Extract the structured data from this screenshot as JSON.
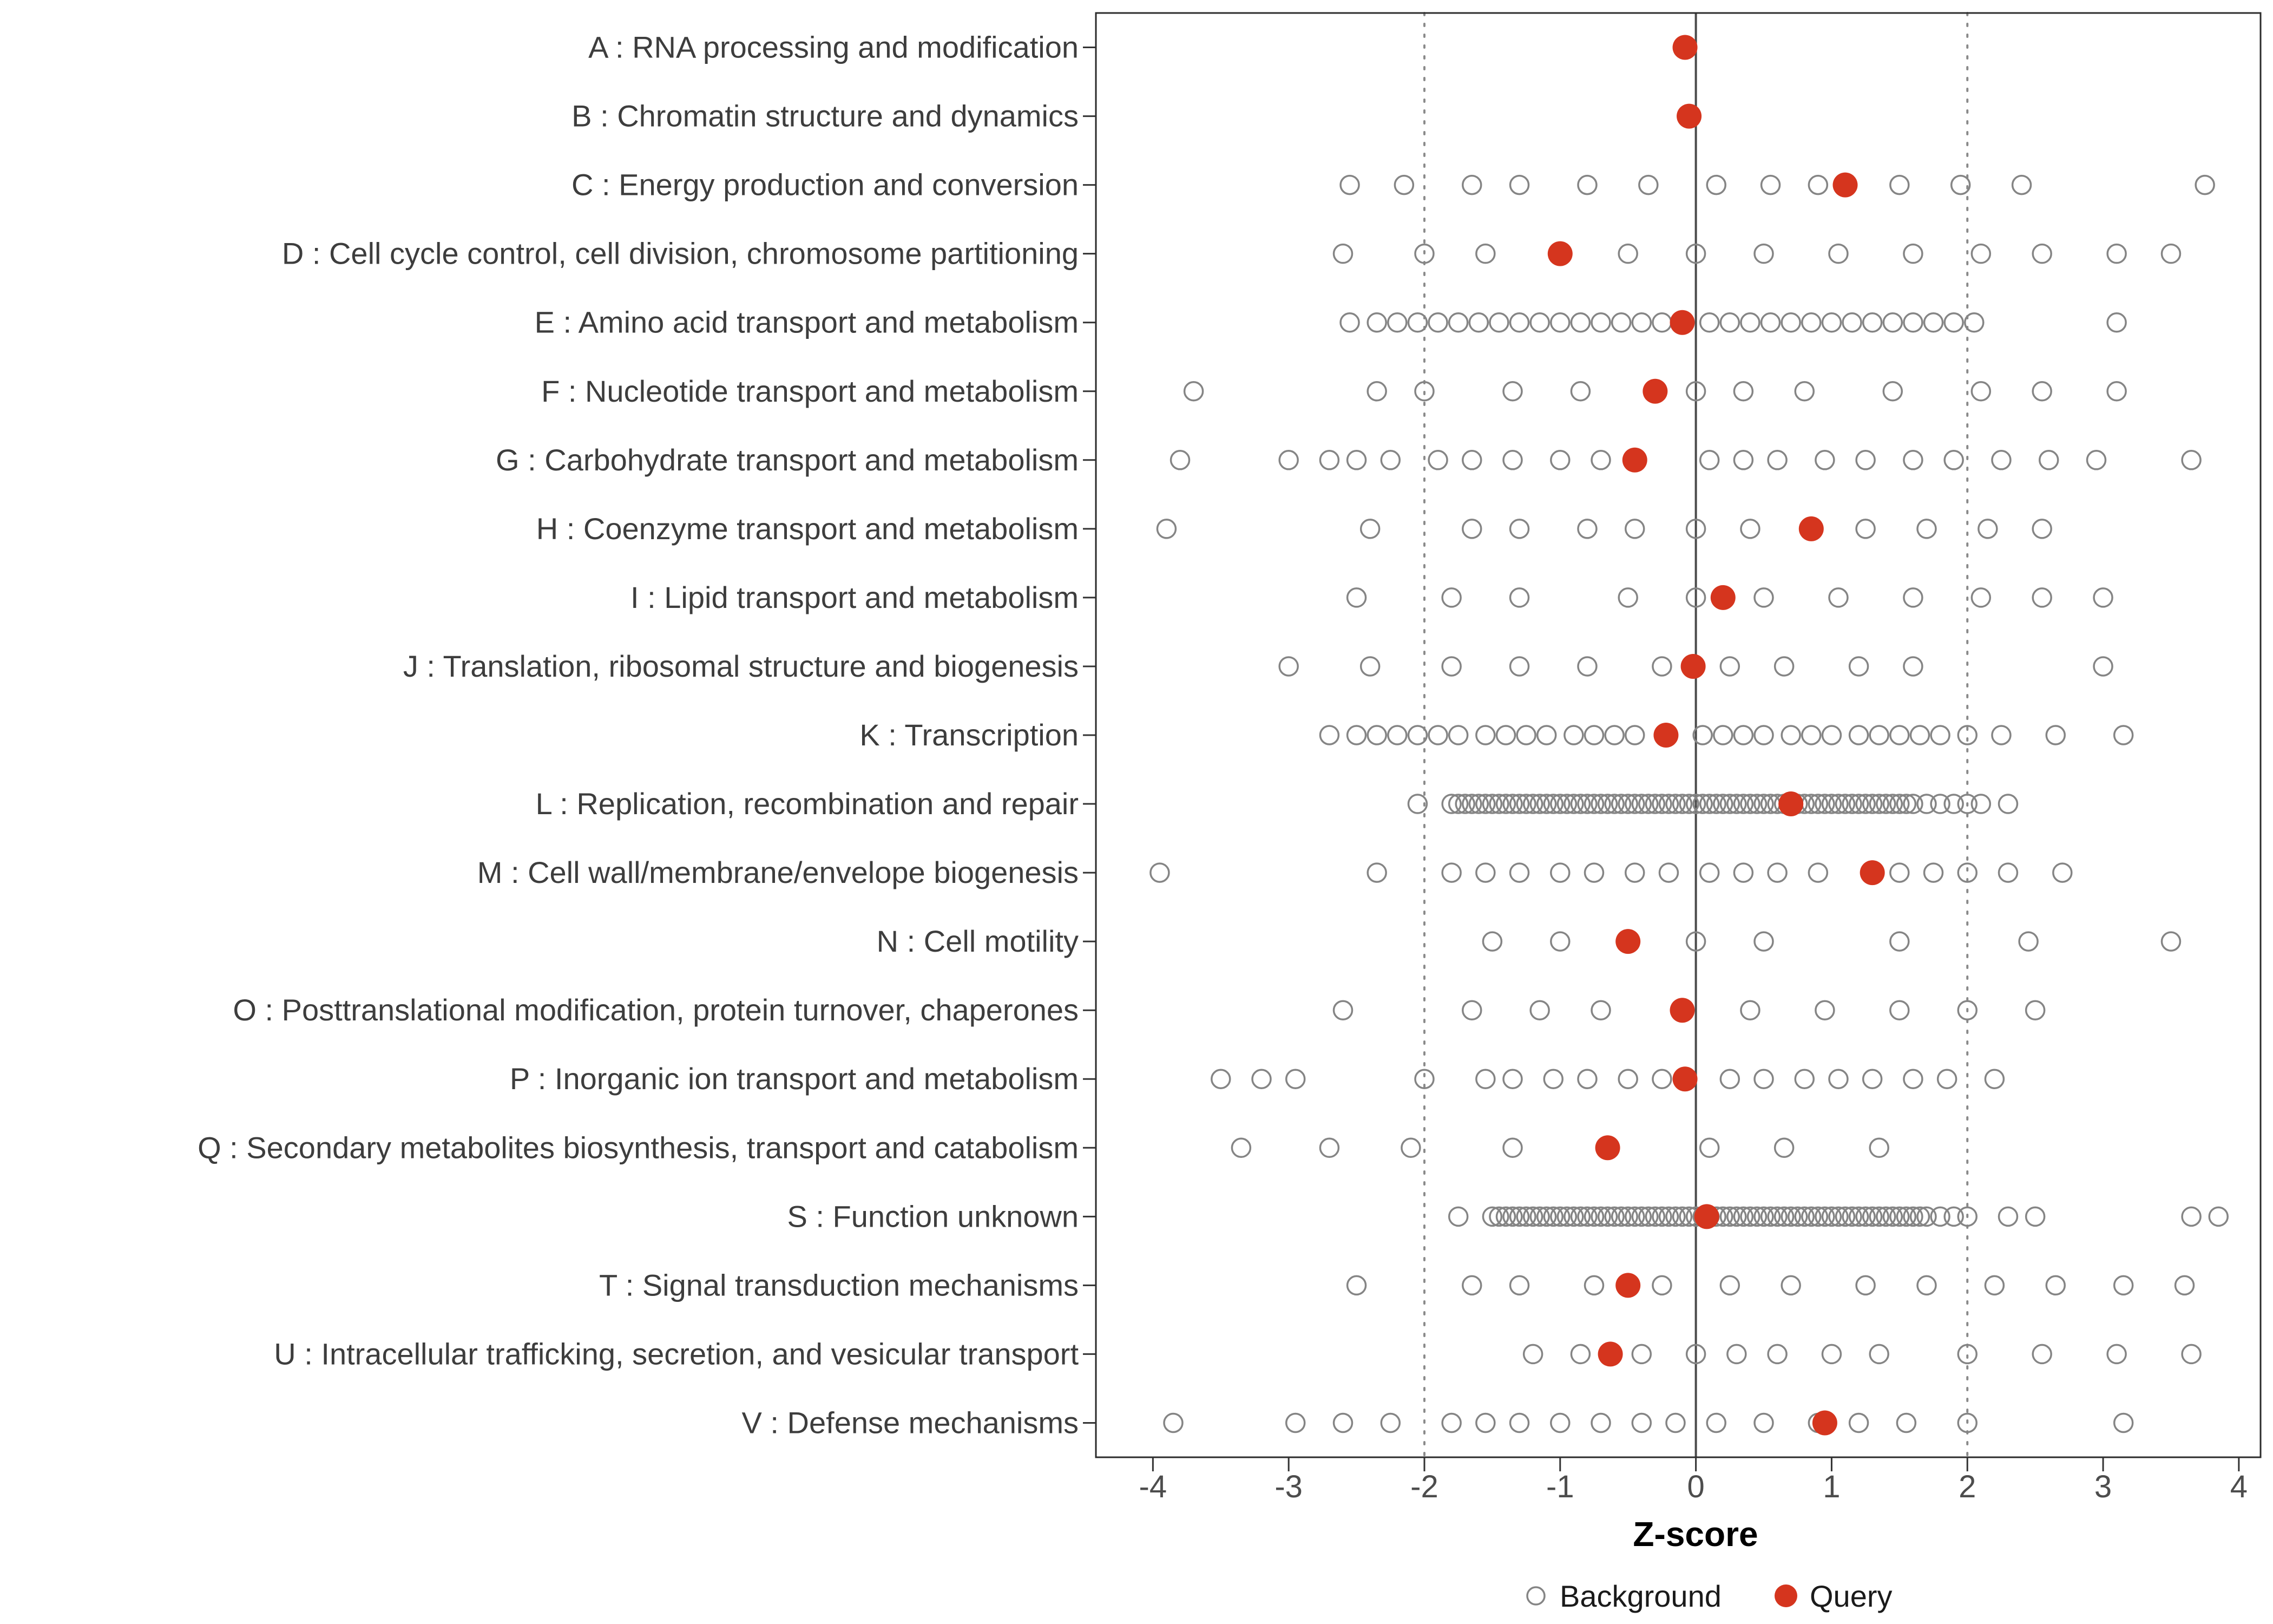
{
  "figure": {
    "colors": {
      "query": "#D5351E",
      "background_stroke": "#858585",
      "zero_line": "#4A4A4A",
      "dashed_line": "#8A8A8A",
      "panel_border": "#2B2B2B",
      "tick_color": "#333333"
    }
  },
  "chart_data": {
    "type": "scatter",
    "title": "",
    "xlabel": "Z-score",
    "ylabel": "",
    "xlim": [
      -4.42,
      4.16
    ],
    "x_ticks": [
      -4,
      -3,
      -2,
      -1,
      0,
      1,
      2,
      3,
      4
    ],
    "ref_lines": {
      "solid": [
        0
      ],
      "dashed": [
        -2,
        2
      ]
    },
    "grid": false,
    "legend": [
      "Background",
      "Query"
    ],
    "legend_position": "bottom",
    "rows": [
      {
        "label": "A : RNA processing and modification",
        "query": -0.08,
        "background": []
      },
      {
        "label": "B : Chromatin structure and dynamics",
        "query": -0.05,
        "background": []
      },
      {
        "label": "C : Energy production and conversion",
        "query": 1.1,
        "background": [
          -2.55,
          -2.15,
          -1.65,
          -1.3,
          -0.8,
          -0.35,
          0.15,
          0.55,
          0.9,
          1.5,
          1.95,
          2.4,
          3.75
        ]
      },
      {
        "label": "D : Cell cycle control, cell division, chromosome partitioning",
        "query": -1.0,
        "background": [
          -2.6,
          -2.0,
          -1.55,
          -0.5,
          0.0,
          0.5,
          1.05,
          1.6,
          2.1,
          2.55,
          3.1,
          3.5
        ]
      },
      {
        "label": "E : Amino acid transport and metabolism",
        "query": -0.1,
        "background": [
          -2.55,
          -2.35,
          -2.2,
          -2.05,
          -1.9,
          -1.75,
          -1.6,
          -1.45,
          -1.3,
          -1.15,
          -1.0,
          -0.85,
          -0.7,
          -0.55,
          -0.4,
          -0.25,
          0.1,
          0.25,
          0.4,
          0.55,
          0.7,
          0.85,
          1.0,
          1.15,
          1.3,
          1.45,
          1.6,
          1.75,
          1.9,
          2.05,
          3.1
        ]
      },
      {
        "label": "F : Nucleotide transport and metabolism",
        "query": -0.3,
        "background": [
          -3.7,
          -2.35,
          -2.0,
          -1.35,
          -0.85,
          0.0,
          0.35,
          0.8,
          1.45,
          2.1,
          2.55,
          3.1
        ]
      },
      {
        "label": "G : Carbohydrate transport and metabolism",
        "query": -0.45,
        "background": [
          -3.8,
          -3.0,
          -2.7,
          -2.5,
          -2.25,
          -1.9,
          -1.65,
          -1.35,
          -1.0,
          -0.7,
          0.1,
          0.35,
          0.6,
          0.95,
          1.25,
          1.6,
          1.9,
          2.25,
          2.6,
          2.95,
          3.65
        ]
      },
      {
        "label": "H : Coenzyme transport and metabolism",
        "query": 0.85,
        "background": [
          -3.9,
          -2.4,
          -1.65,
          -1.3,
          -0.8,
          -0.45,
          0.0,
          0.4,
          1.25,
          1.7,
          2.15,
          2.55
        ]
      },
      {
        "label": "I : Lipid transport and metabolism",
        "query": 0.2,
        "background": [
          -2.5,
          -1.8,
          -1.3,
          -0.5,
          0.0,
          0.5,
          1.05,
          1.6,
          2.1,
          2.55,
          3.0
        ]
      },
      {
        "label": "J : Translation, ribosomal structure and biogenesis",
        "query": -0.02,
        "background": [
          -3.0,
          -2.4,
          -1.8,
          -1.3,
          -0.8,
          -0.25,
          0.25,
          0.65,
          1.2,
          1.6,
          3.0
        ]
      },
      {
        "label": "K : Transcription",
        "query": -0.22,
        "background": [
          -2.7,
          -2.5,
          -2.35,
          -2.2,
          -2.05,
          -1.9,
          -1.75,
          -1.55,
          -1.4,
          -1.25,
          -1.1,
          -0.9,
          -0.75,
          -0.6,
          -0.45,
          0.05,
          0.2,
          0.35,
          0.5,
          0.7,
          0.85,
          1.0,
          1.2,
          1.35,
          1.5,
          1.65,
          1.8,
          2.0,
          2.25,
          2.65,
          3.15
        ]
      },
      {
        "label": "L : Replication, recombination and repair",
        "query": 0.7,
        "background": [
          -2.05,
          -1.8,
          -1.75,
          -1.7,
          -1.65,
          -1.6,
          -1.55,
          -1.5,
          -1.45,
          -1.4,
          -1.35,
          -1.3,
          -1.25,
          -1.2,
          -1.15,
          -1.1,
          -1.05,
          -1.0,
          -0.95,
          -0.9,
          -0.85,
          -0.8,
          -0.75,
          -0.7,
          -0.65,
          -0.6,
          -0.55,
          -0.5,
          -0.45,
          -0.4,
          -0.35,
          -0.3,
          -0.25,
          -0.2,
          -0.15,
          -0.1,
          -0.05,
          0.0,
          0.05,
          0.1,
          0.15,
          0.2,
          0.25,
          0.3,
          0.35,
          0.4,
          0.45,
          0.5,
          0.55,
          0.6,
          0.65,
          0.7,
          0.75,
          0.8,
          0.85,
          0.9,
          0.95,
          1.0,
          1.05,
          1.1,
          1.15,
          1.2,
          1.25,
          1.3,
          1.35,
          1.4,
          1.45,
          1.5,
          1.55,
          1.6,
          1.7,
          1.8,
          1.9,
          2.0,
          2.1,
          2.3
        ]
      },
      {
        "label": "M : Cell wall/membrane/envelope biogenesis",
        "query": 1.3,
        "background": [
          -3.95,
          -2.35,
          -1.8,
          -1.55,
          -1.3,
          -1.0,
          -0.75,
          -0.45,
          -0.2,
          0.1,
          0.35,
          0.6,
          0.9,
          1.5,
          1.75,
          2.0,
          2.3,
          2.7
        ]
      },
      {
        "label": "N : Cell motility",
        "query": -0.5,
        "background": [
          -1.5,
          -1.0,
          0.0,
          0.5,
          1.5,
          2.45,
          3.5
        ]
      },
      {
        "label": "O : Posttranslational modification, protein turnover, chaperones",
        "query": -0.1,
        "background": [
          -2.6,
          -1.65,
          -1.15,
          -0.7,
          0.4,
          0.95,
          1.5,
          2.0,
          2.5
        ]
      },
      {
        "label": "P : Inorganic ion transport and metabolism",
        "query": -0.08,
        "background": [
          -3.5,
          -3.2,
          -2.95,
          -2.0,
          -1.55,
          -1.35,
          -1.05,
          -0.8,
          -0.5,
          -0.25,
          0.25,
          0.5,
          0.8,
          1.05,
          1.3,
          1.6,
          1.85,
          2.2
        ]
      },
      {
        "label": "Q : Secondary metabolites biosynthesis, transport and catabolism",
        "query": -0.65,
        "background": [
          -3.35,
          -2.7,
          -2.1,
          -1.35,
          0.1,
          0.65,
          1.35
        ]
      },
      {
        "label": "S : Function unknown",
        "query": 0.08,
        "background": [
          -1.75,
          -1.5,
          -1.45,
          -1.4,
          -1.35,
          -1.3,
          -1.25,
          -1.2,
          -1.15,
          -1.1,
          -1.05,
          -1.0,
          -0.95,
          -0.9,
          -0.85,
          -0.8,
          -0.75,
          -0.7,
          -0.65,
          -0.6,
          -0.55,
          -0.5,
          -0.45,
          -0.4,
          -0.35,
          -0.3,
          -0.25,
          -0.2,
          -0.15,
          -0.1,
          -0.05,
          0.0,
          0.05,
          0.1,
          0.15,
          0.2,
          0.25,
          0.3,
          0.35,
          0.4,
          0.45,
          0.5,
          0.55,
          0.6,
          0.65,
          0.7,
          0.75,
          0.8,
          0.85,
          0.9,
          0.95,
          1.0,
          1.05,
          1.1,
          1.15,
          1.2,
          1.25,
          1.3,
          1.35,
          1.4,
          1.45,
          1.5,
          1.55,
          1.6,
          1.65,
          1.7,
          1.8,
          1.9,
          2.0,
          2.3,
          2.5,
          3.65,
          3.85
        ]
      },
      {
        "label": "T : Signal transduction mechanisms",
        "query": -0.5,
        "background": [
          -2.5,
          -1.65,
          -1.3,
          -0.75,
          -0.25,
          0.25,
          0.7,
          1.25,
          1.7,
          2.2,
          2.65,
          3.15,
          3.6
        ]
      },
      {
        "label": "U : Intracellular trafficking, secretion, and vesicular transport",
        "query": -0.63,
        "background": [
          -1.2,
          -0.85,
          -0.4,
          0.0,
          0.3,
          0.6,
          1.0,
          1.35,
          2.0,
          2.55,
          3.1,
          3.65
        ]
      },
      {
        "label": "V : Defense mechanisms",
        "query": 0.95,
        "background": [
          -3.85,
          -2.95,
          -2.6,
          -2.25,
          -1.8,
          -1.55,
          -1.3,
          -1.0,
          -0.7,
          -0.4,
          -0.15,
          0.15,
          0.5,
          0.9,
          1.2,
          1.55,
          2.0,
          3.15
        ]
      }
    ]
  }
}
